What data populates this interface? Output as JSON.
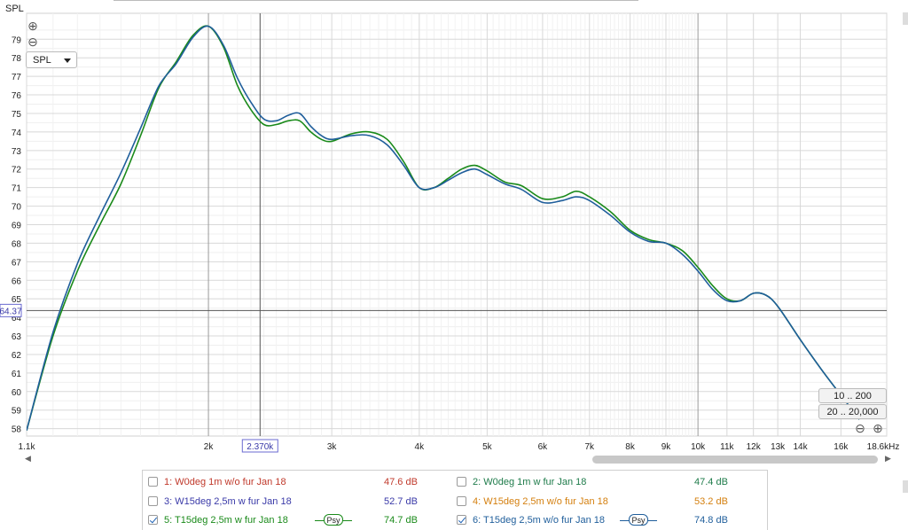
{
  "header": {
    "y_axis_title": "SPL"
  },
  "controls": {
    "zoom_in": "⊕",
    "zoom_out": "⊖",
    "measure_select": "SPL",
    "range_buttons": [
      "10 .. 200",
      "20 .. 20,000"
    ],
    "h_zoom_out": "⊖",
    "h_zoom_in": "⊕",
    "scroll_left": "◀",
    "scroll_right": "▶"
  },
  "cursor": {
    "x_readout": "2.370k",
    "y_readout": "64.37"
  },
  "chart_data": {
    "type": "line",
    "title": "",
    "ylabel": "SPL",
    "xlabel": "",
    "x_scale": "log",
    "xlim": [
      1100,
      18600
    ],
    "ylim": [
      57.6,
      80.4
    ],
    "grid": true,
    "x_ticks": [
      1100,
      2000,
      3000,
      4000,
      5000,
      6000,
      7000,
      8000,
      9000,
      10000,
      11000,
      12000,
      13000,
      14000,
      16000,
      18600
    ],
    "x_tick_labels": [
      "1.1k",
      "2k",
      "3k",
      "4k",
      "5k",
      "6k",
      "7k",
      "8k",
      "9k",
      "10k",
      "11k",
      "12k",
      "13k",
      "14k",
      "16k",
      "18.6kHz"
    ],
    "y_ticks": [
      58,
      59,
      60,
      61,
      62,
      63,
      64,
      65,
      66,
      67,
      68,
      69,
      70,
      71,
      72,
      73,
      74,
      75,
      76,
      77,
      78,
      79
    ],
    "y_tick_labels": [
      "58",
      "59",
      "60",
      "61",
      "62",
      "63",
      "64",
      "65",
      "66",
      "67",
      "68",
      "69",
      "70",
      "71",
      "72",
      "73",
      "74",
      "75",
      "76",
      "77",
      "78",
      "79"
    ],
    "cursor_x": 2370,
    "cursor_y": 64.37,
    "series": [
      {
        "name": "5: T15deg 2,5m w fur Jan 18",
        "color": "#1a8a1a",
        "x": [
          1100,
          1200,
          1300,
          1400,
          1500,
          1600,
          1700,
          1800,
          1900,
          2000,
          2100,
          2200,
          2300,
          2400,
          2500,
          2600,
          2700,
          2800,
          2900,
          3000,
          3200,
          3400,
          3600,
          3800,
          4000,
          4200,
          4400,
          4600,
          4800,
          5000,
          5300,
          5600,
          6000,
          6400,
          6700,
          7000,
          7500,
          8000,
          8500,
          9000,
          9500,
          10000,
          10500,
          11000,
          11500,
          12000,
          12500,
          13000,
          14000,
          15000,
          16000,
          17000
        ],
        "y": [
          57.9,
          63.0,
          66.5,
          69.0,
          71.2,
          73.8,
          76.4,
          77.8,
          79.2,
          79.7,
          78.6,
          76.5,
          75.2,
          74.4,
          74.4,
          74.6,
          74.6,
          74.0,
          73.6,
          73.5,
          73.9,
          74.0,
          73.6,
          72.4,
          71.0,
          71.0,
          71.5,
          72.0,
          72.2,
          71.9,
          71.3,
          71.1,
          70.4,
          70.5,
          70.8,
          70.5,
          69.7,
          68.7,
          68.2,
          68.0,
          67.6,
          66.7,
          65.7,
          65.0,
          64.9,
          65.3,
          65.2,
          64.6,
          62.8,
          61.2,
          59.8,
          58.5
        ]
      },
      {
        "name": "6: T15deg 2,5m w/o fur Jan 18",
        "color": "#1f5e9b",
        "x": [
          1100,
          1200,
          1300,
          1400,
          1500,
          1600,
          1700,
          1800,
          1900,
          2000,
          2100,
          2200,
          2300,
          2400,
          2500,
          2600,
          2700,
          2800,
          2900,
          3000,
          3200,
          3400,
          3600,
          3800,
          4000,
          4200,
          4400,
          4600,
          4800,
          5000,
          5300,
          5600,
          6000,
          6400,
          6700,
          7000,
          7500,
          8000,
          8500,
          9000,
          9500,
          10000,
          10500,
          11000,
          11500,
          12000,
          12500,
          13000,
          14000,
          15000,
          16000,
          17000
        ],
        "y": [
          57.9,
          63.2,
          66.9,
          69.5,
          71.8,
          74.2,
          76.5,
          77.7,
          79.1,
          79.7,
          78.7,
          76.9,
          75.6,
          74.7,
          74.6,
          74.9,
          75.0,
          74.3,
          73.8,
          73.6,
          73.8,
          73.8,
          73.3,
          72.2,
          71.0,
          71.0,
          71.4,
          71.8,
          72.0,
          71.7,
          71.2,
          70.9,
          70.2,
          70.3,
          70.5,
          70.3,
          69.5,
          68.6,
          68.1,
          68.0,
          67.4,
          66.5,
          65.5,
          64.9,
          64.9,
          65.3,
          65.2,
          64.6,
          62.8,
          61.2,
          59.8,
          58.5
        ]
      }
    ]
  },
  "legend": [
    {
      "label": "1: W0deg 1m w/o fur Jan 18",
      "value": "47.6 dB",
      "color": "#c0392b",
      "checked": false,
      "psy": ""
    },
    {
      "label": "2: W0deg 1m w fur Jan 18",
      "value": "47.4 dB",
      "color": "#1e7b4a",
      "checked": false,
      "psy": ""
    },
    {
      "label": "3: W15deg 2,5m w fur Jan 18",
      "value": "52.7 dB",
      "color": "#3a3aa8",
      "checked": false,
      "psy": ""
    },
    {
      "label": "4: W15deg 2,5m w/o fur Jan 18",
      "value": "53.2 dB",
      "color": "#d47f0e",
      "checked": false,
      "psy": ""
    },
    {
      "label": "5: T15deg 2,5m w fur Jan 18",
      "value": "74.7 dB",
      "color": "#1a8a1a",
      "checked": true,
      "psy": "Psy"
    },
    {
      "label": "6: T15deg 2,5m w/o fur Jan 18",
      "value": "74.8 dB",
      "color": "#1f5e9b",
      "checked": true,
      "psy": "Psy"
    }
  ]
}
